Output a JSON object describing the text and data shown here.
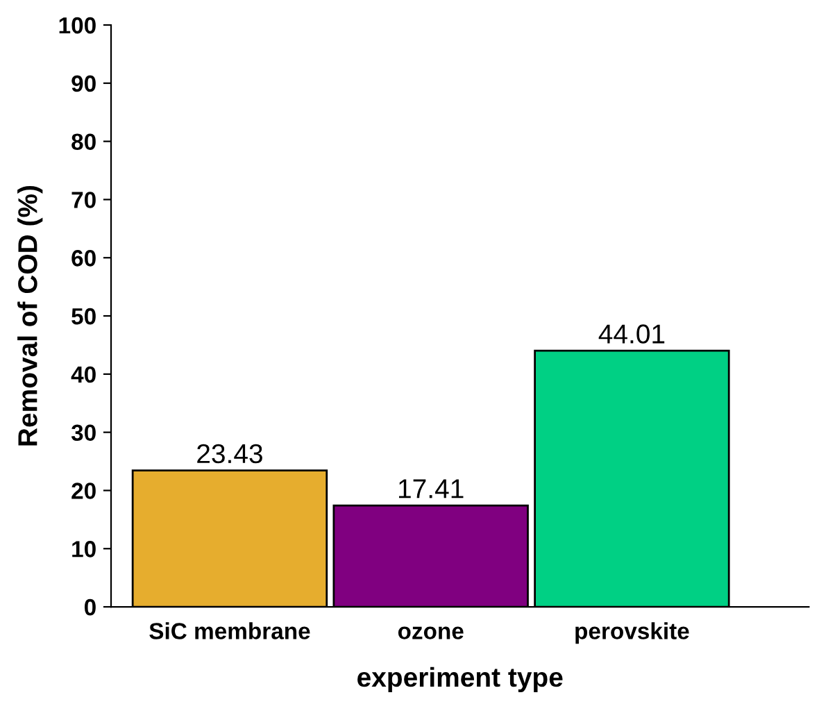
{
  "chart_data": {
    "type": "bar",
    "xlabel": "experiment type",
    "ylabel": "Removal of COD (%)",
    "categories": [
      "SiC membrane",
      "ozone",
      "perovskite"
    ],
    "values": [
      23.43,
      17.41,
      44.01
    ],
    "colors": [
      "#e6ad2e",
      "#800080",
      "#00d084"
    ],
    "ylim": [
      0,
      100
    ],
    "yticks": [
      0,
      10,
      20,
      30,
      40,
      50,
      60,
      70,
      80,
      90,
      100
    ],
    "data_labels": true,
    "grid": false,
    "legend": false
  }
}
